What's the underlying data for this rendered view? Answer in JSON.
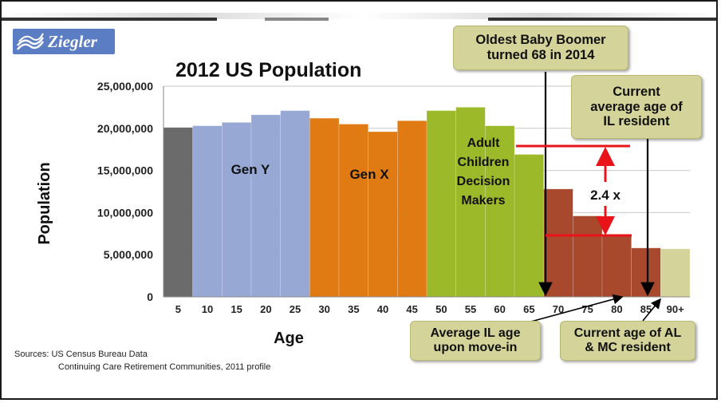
{
  "logo": {
    "text": "Ziegler"
  },
  "chart_data": {
    "type": "bar",
    "title": "2012 US Population",
    "xlabel": "Age",
    "ylabel": "Population",
    "ylim": [
      0,
      25000000
    ],
    "yticks": [
      "0",
      "5,000,000",
      "10,000,000",
      "15,000,000",
      "20,000,000",
      "25,000,000"
    ],
    "categories": [
      "5",
      "10",
      "15",
      "20",
      "25",
      "30",
      "35",
      "40",
      "45",
      "50",
      "55",
      "60",
      "65",
      "70",
      "75",
      "80",
      "85",
      "90+"
    ],
    "values": [
      20100000,
      20300000,
      20700000,
      21600000,
      22100000,
      21200000,
      20500000,
      19600000,
      20900000,
      22100000,
      22500000,
      20300000,
      16900000,
      12800000,
      9600000,
      7300000,
      5800000,
      5700000
    ],
    "bar_colors": [
      "#6b6b6b",
      "#97a8d4",
      "#97a8d4",
      "#97a8d4",
      "#97a8d4",
      "#e07b14",
      "#e07b14",
      "#e07b14",
      "#e07b14",
      "#9cb92a",
      "#9cb92a",
      "#9cb92a",
      "#9cb92a",
      "#a8482c",
      "#a8482c",
      "#a8482c",
      "#a8482c",
      "#d4d49a"
    ],
    "grid": true,
    "group_labels": [
      {
        "text": "Gen Y",
        "lines": [
          "Gen Y"
        ]
      },
      {
        "text": "Gen X",
        "lines": [
          "Gen X"
        ]
      },
      {
        "text": "Adult Children Decision Makers",
        "lines": [
          "Adult",
          "Children",
          "Decision",
          "Makers"
        ]
      }
    ],
    "ratio_label": "2.4 x"
  },
  "callouts": {
    "oldest_boomer": [
      "Oldest Baby Boomer",
      "turned 68 in 2014"
    ],
    "il_resident": [
      "Current",
      "average age of",
      "IL resident"
    ],
    "il_move_in": [
      "Average IL age",
      "upon move-in"
    ],
    "al_mc_resident": [
      "Current age of AL",
      "& MC resident"
    ]
  },
  "sources": {
    "line1": "Sources: US Census Bureau Data",
    "line2": "Continuing Care Retirement Communities, 2011 profile"
  },
  "colors": {
    "grid": "#c8c8c8",
    "arrow_red": "#e8141a",
    "callout_bg": "#d4d49a"
  }
}
